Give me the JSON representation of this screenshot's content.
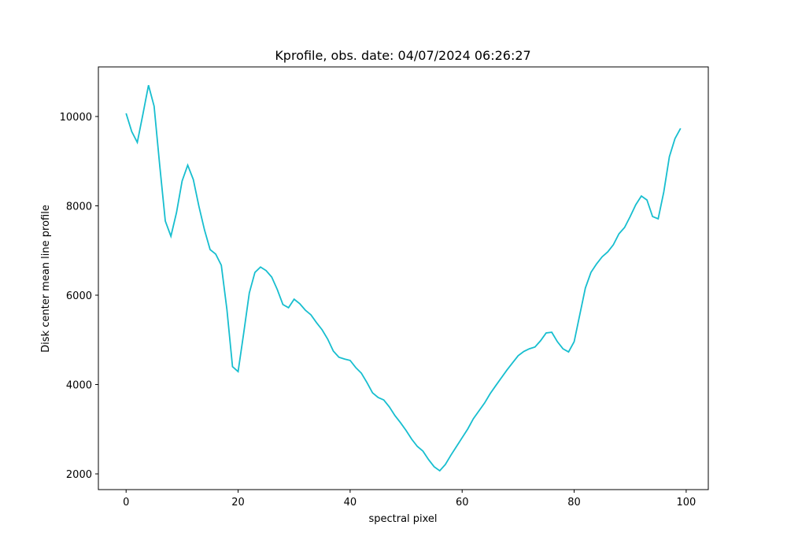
{
  "chart_data": {
    "type": "line",
    "title": "Kprofile, obs. date: 04/07/2024 06:26:27",
    "xlabel": "spectral pixel",
    "ylabel": "Disk center mean line profile",
    "x": [
      0,
      1,
      2,
      3,
      4,
      5,
      6,
      7,
      8,
      9,
      10,
      11,
      12,
      13,
      14,
      15,
      16,
      17,
      18,
      19,
      20,
      21,
      22,
      23,
      24,
      25,
      26,
      27,
      28,
      29,
      30,
      31,
      32,
      33,
      34,
      35,
      36,
      37,
      38,
      39,
      40,
      41,
      42,
      43,
      44,
      45,
      46,
      47,
      48,
      49,
      50,
      51,
      52,
      53,
      54,
      55,
      56,
      57,
      58,
      59,
      60,
      61,
      62,
      63,
      64,
      65,
      66,
      67,
      68,
      69,
      70,
      71,
      72,
      73,
      74,
      75,
      76,
      77,
      78,
      79,
      80,
      81,
      82,
      83,
      84,
      85,
      86,
      87,
      88,
      89,
      90,
      91,
      92,
      93,
      94,
      95,
      96,
      97,
      98,
      99
    ],
    "series": [
      {
        "color": "#17becf",
        "values": [
          10070,
          9665,
          9420,
          10050,
          10700,
          10230,
          8910,
          7660,
          7320,
          7850,
          8555,
          8910,
          8590,
          7990,
          7460,
          7020,
          6920,
          6670,
          5680,
          4400,
          4290,
          5155,
          6050,
          6510,
          6630,
          6550,
          6405,
          6125,
          5790,
          5720,
          5910,
          5810,
          5665,
          5560,
          5385,
          5225,
          5015,
          4750,
          4610,
          4570,
          4540,
          4380,
          4255,
          4045,
          3815,
          3710,
          3655,
          3500,
          3305,
          3145,
          2970,
          2775,
          2615,
          2510,
          2320,
          2160,
          2070,
          2210,
          2420,
          2615,
          2810,
          3005,
          3235,
          3410,
          3585,
          3795,
          3975,
          4150,
          4325,
          4485,
          4645,
          4740,
          4800,
          4840,
          4980,
          5155,
          5170,
          4960,
          4800,
          4730,
          4960,
          5560,
          6160,
          6510,
          6700,
          6860,
          6970,
          7130,
          7375,
          7515,
          7760,
          8025,
          8220,
          8130,
          7760,
          7710,
          8310,
          9100,
          9505,
          9735
        ]
      }
    ],
    "xlim": [
      -4.95,
      103.95
    ],
    "ylim": [
      1648,
      11110
    ],
    "xticks": [
      0,
      20,
      40,
      60,
      80,
      100
    ],
    "yticks": [
      2000,
      4000,
      6000,
      8000,
      10000
    ]
  }
}
